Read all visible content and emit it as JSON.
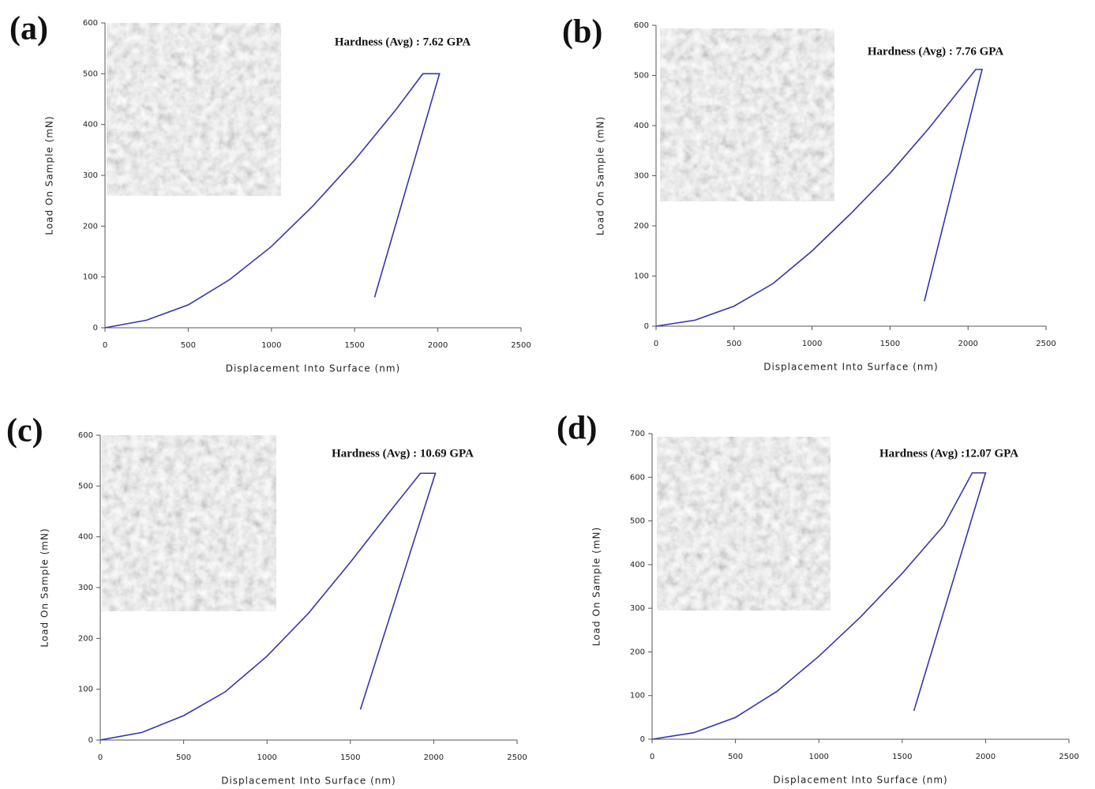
{
  "chart_data": [
    {
      "type": "line",
      "panel": "(a)",
      "annotation": "Hardness (Avg) : 7.62 GPA",
      "xlabel": "Displacement Into Surface (nm)",
      "ylabel": "Load On Sample (mN)",
      "color": "#3535b0",
      "x": [
        0,
        250,
        500,
        750,
        1000,
        1250,
        1500,
        1750,
        1910,
        2010,
        1620
      ],
      "values": [
        0,
        15,
        45,
        95,
        160,
        240,
        330,
        430,
        500,
        500,
        60
      ],
      "xlim": [
        0,
        2500
      ],
      "ylim": [
        0,
        600
      ],
      "xticks": [
        0,
        500,
        1000,
        1500,
        2000,
        2500
      ],
      "yticks": [
        0,
        100,
        200,
        300,
        400,
        500,
        600
      ]
    },
    {
      "type": "line",
      "panel": "(b)",
      "annotation": "Hardness (Avg) : 7.76 GPA",
      "xlabel": "Displacement Into Surface (nm)",
      "ylabel": "Load On Sample (mN)",
      "color": "#3535b0",
      "x": [
        0,
        250,
        500,
        750,
        1000,
        1250,
        1500,
        1750,
        2050,
        2090,
        1720
      ],
      "values": [
        0,
        12,
        40,
        85,
        150,
        225,
        305,
        395,
        512,
        512,
        50
      ],
      "xlim": [
        0,
        2500
      ],
      "ylim": [
        0,
        600
      ],
      "xticks": [
        0,
        500,
        1000,
        1500,
        2000,
        2500
      ],
      "yticks": [
        0,
        100,
        200,
        300,
        400,
        500,
        600
      ]
    },
    {
      "type": "line",
      "panel": "(c)",
      "annotation": "Hardness (Avg) : 10.69 GPA",
      "xlabel": "Displacement Into Surface (nm)",
      "ylabel": "Load On Sample (mN)",
      "color": "#3535b0",
      "x": [
        0,
        250,
        500,
        750,
        1000,
        1250,
        1500,
        1750,
        1920,
        2010,
        1560
      ],
      "values": [
        0,
        15,
        48,
        95,
        165,
        250,
        350,
        455,
        525,
        525,
        60
      ],
      "xlim": [
        0,
        2500
      ],
      "ylim": [
        0,
        600
      ],
      "xticks": [
        0,
        500,
        1000,
        1500,
        2000,
        2500
      ],
      "yticks": [
        0,
        100,
        200,
        300,
        400,
        500,
        600
      ]
    },
    {
      "type": "line",
      "panel": "(d)",
      "annotation": "Hardness (Avg) :12.07 GPA",
      "xlabel": "Displacement Into Surface (nm)",
      "ylabel": "Load On Sample (mN)",
      "color": "#3535b0",
      "x": [
        0,
        250,
        500,
        750,
        1000,
        1250,
        1500,
        1750,
        1920,
        2000,
        1570
      ],
      "values": [
        0,
        15,
        50,
        110,
        190,
        280,
        380,
        490,
        610,
        610,
        65
      ],
      "xlim": [
        0,
        2500
      ],
      "ylim": [
        0,
        700
      ],
      "xticks": [
        0,
        500,
        1000,
        1500,
        2000,
        2500
      ],
      "yticks": [
        0,
        100,
        200,
        300,
        400,
        500,
        600,
        700
      ]
    }
  ]
}
